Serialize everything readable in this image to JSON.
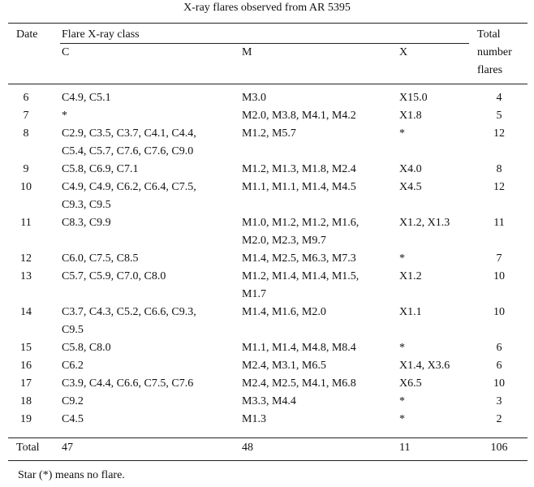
{
  "title": "X-ray flares observed from AR 5395",
  "headers": {
    "date": "Date",
    "flare_class": "Flare X-ray class",
    "c": "C",
    "m": "M",
    "x": "X",
    "total": [
      "Total",
      "number",
      "flares"
    ]
  },
  "rows": [
    {
      "date": "6",
      "c": [
        "C4.9, C5.1"
      ],
      "m": [
        "M3.0"
      ],
      "x": [
        "X15.0"
      ],
      "total": "4"
    },
    {
      "date": "7",
      "c": [
        "*"
      ],
      "m": [
        "M2.0, M3.8, M4.1, M4.2"
      ],
      "x": [
        "X1.8"
      ],
      "total": "5"
    },
    {
      "date": "8",
      "c": [
        "C2.9, C3.5, C3.7, C4.1, C4.4,",
        "C5.4, C5.7, C7.6, C7.6, C9.0"
      ],
      "m": [
        "M1.2, M5.7"
      ],
      "x": [
        "*"
      ],
      "total": "12"
    },
    {
      "date": "9",
      "c": [
        "C5.8, C6.9, C7.1"
      ],
      "m": [
        "M1.2, M1.3, M1.8, M2.4"
      ],
      "x": [
        "X4.0"
      ],
      "total": "8"
    },
    {
      "date": "10",
      "c": [
        "C4.9, C4.9, C6.2, C6.4, C7.5,",
        "C9.3, C9.5"
      ],
      "m": [
        "M1.1, M1.1, M1.4, M4.5"
      ],
      "x": [
        "X4.5"
      ],
      "total": "12"
    },
    {
      "date": "11",
      "c": [
        "C8.3, C9.9"
      ],
      "m": [
        "M1.0, M1.2, M1.2, M1.6,",
        "M2.0, M2.3, M9.7"
      ],
      "x": [
        "X1.2, X1.3"
      ],
      "total": "11"
    },
    {
      "date": "12",
      "c": [
        "C6.0, C7.5, C8.5"
      ],
      "m": [
        "M1.4, M2.5, M6.3, M7.3"
      ],
      "x": [
        "*"
      ],
      "total": "7"
    },
    {
      "date": "13",
      "c": [
        "C5.7, C5.9, C7.0, C8.0"
      ],
      "m": [
        "M1.2, M1.4, M1.4, M1.5,",
        "M1.7"
      ],
      "x": [
        "X1.2"
      ],
      "total": "10"
    },
    {
      "date": "14",
      "c": [
        "C3.7, C4.3, C5.2, C6.6, C9.3,",
        "C9.5"
      ],
      "m": [
        "M1.4, M1.6, M2.0"
      ],
      "x": [
        "X1.1"
      ],
      "total": "10"
    },
    {
      "date": "15",
      "c": [
        "C5.8, C8.0"
      ],
      "m": [
        "M1.1, M1.4, M4.8, M8.4"
      ],
      "x": [
        "*"
      ],
      "total": "6"
    },
    {
      "date": "16",
      "c": [
        "C6.2"
      ],
      "m": [
        "M2.4, M3.1, M6.5"
      ],
      "x": [
        "X1.4, X3.6"
      ],
      "total": "6"
    },
    {
      "date": "17",
      "c": [
        "C3.9, C4.4, C6.6, C7.5, C7.6"
      ],
      "m": [
        "M2.4, M2.5, M4.1, M6.8"
      ],
      "x": [
        "X6.5"
      ],
      "total": "10"
    },
    {
      "date": "18",
      "c": [
        "C9.2"
      ],
      "m": [
        "M3.3, M4.4"
      ],
      "x": [
        "*"
      ],
      "total": "3"
    },
    {
      "date": "19",
      "c": [
        "C4.5"
      ],
      "m": [
        "M1.3"
      ],
      "x": [
        "*"
      ],
      "total": "2"
    }
  ],
  "totals": {
    "label": "Total",
    "c": "47",
    "m": "48",
    "x": "11",
    "total": "106"
  },
  "footnote": "Star (*) means no flare."
}
